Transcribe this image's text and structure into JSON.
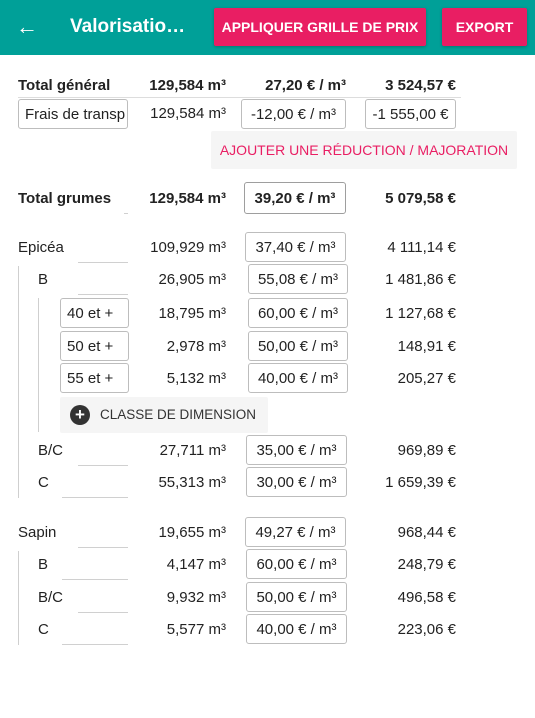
{
  "appbar": {
    "back_icon": "arrow-left-icon",
    "title": "Valorisatio…",
    "apply_grid_label": "APPLIQUER GRILLE DE PRIX",
    "export_label": "EXPORT"
  },
  "total_general": {
    "label": "Total général",
    "volume": "129,584 m³",
    "price": "27,20 € / m³",
    "amount": "3 524,57 €"
  },
  "transport": {
    "name": "Frais de transp",
    "volume": "129,584 m³",
    "price": "-12,00 € / m³",
    "amount": "-1 555,00 €"
  },
  "add_reduction_label": "AJOUTER UNE RÉDUCTION / MAJORATION",
  "total_grumes": {
    "label": "Total grumes",
    "volume": "129,584 m³",
    "price": "39,20 € / m³",
    "amount": "5 079,58 €"
  },
  "epicea": {
    "label": "Epicéa",
    "volume": "109,929 m³",
    "price": "37,40 € / m³",
    "amount": "4 111,14 €",
    "b": {
      "label": "B",
      "volume": "26,905 m³",
      "price": "55,08 € / m³",
      "amount": "1 481,86 €",
      "classes": [
        {
          "label": "40 et +",
          "volume": "18,795 m³",
          "price": "60,00 € / m³",
          "amount": "1 127,68 €"
        },
        {
          "label": "50 et +",
          "volume": "2,978 m³",
          "price": "50,00 € / m³",
          "amount": "148,91 €"
        },
        {
          "label": "55 et +",
          "volume": "5,132 m³",
          "price": "40,00 € / m³",
          "amount": "205,27 €"
        }
      ],
      "add_class_label": "CLASSE DE DIMENSION"
    },
    "bc": {
      "label": "B/C",
      "volume": "27,711 m³",
      "price": "35,00 € / m³",
      "amount": "969,89 €"
    },
    "c": {
      "label": "C",
      "volume": "55,313 m³",
      "price": "30,00 € / m³",
      "amount": "1 659,39 €"
    }
  },
  "sapin": {
    "label": "Sapin",
    "volume": "19,655 m³",
    "price": "49,27 € / m³",
    "amount": "968,44 €",
    "b": {
      "label": "B",
      "volume": "4,147 m³",
      "price": "60,00 € / m³",
      "amount": "248,79 €"
    },
    "bc": {
      "label": "B/C",
      "volume": "9,932 m³",
      "price": "50,00 € / m³",
      "amount": "496,58 €"
    },
    "c": {
      "label": "C",
      "volume": "5,577 m³",
      "price": "40,00 € / m³",
      "amount": "223,06 €"
    }
  }
}
